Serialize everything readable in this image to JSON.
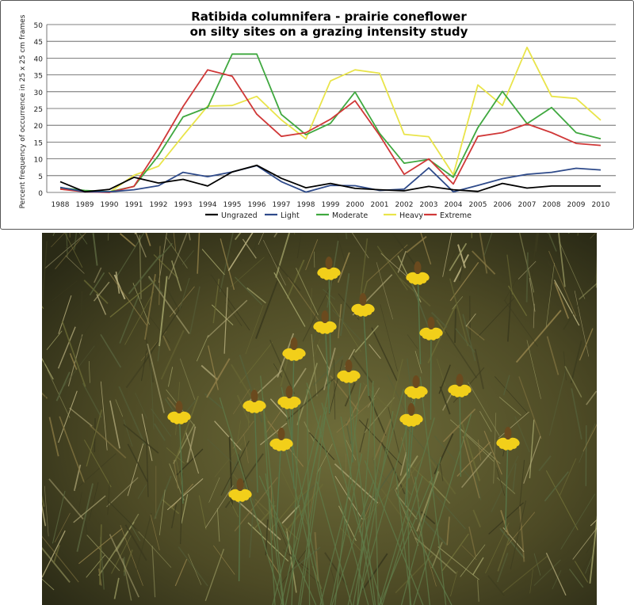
{
  "chart_data": {
    "type": "line",
    "title_line1": "Ratibida columnifera  -  prairie coneflower",
    "title_line2": "on silty sites on a grazing intensity study",
    "ylabel": "Percent frequency of occurrence in 25 x 25 cm frames",
    "xlabel": "",
    "ylim": [
      0,
      50
    ],
    "yticks": [
      0,
      5,
      10,
      15,
      20,
      25,
      30,
      35,
      40,
      45,
      50
    ],
    "grid": "horizontal",
    "legend_position": "bottom",
    "x": [
      1988,
      1989,
      1990,
      1991,
      1992,
      1993,
      1994,
      1995,
      1996,
      1997,
      1998,
      1999,
      2000,
      2001,
      2002,
      2003,
      2004,
      2005,
      2006,
      2007,
      2008,
      2009,
      2010
    ],
    "series": [
      {
        "name": "Ungrazed",
        "color": "#000000",
        "values": [
          3.2,
          0.2,
          0.9,
          4.5,
          2.8,
          3.9,
          1.9,
          6.1,
          8.1,
          4.2,
          1.4,
          2.7,
          1.2,
          0.8,
          0.5,
          1.8,
          0.8,
          0.3,
          2.7,
          1.3,
          1.9,
          1.9,
          1.9
        ]
      },
      {
        "name": "Light",
        "color": "#2e4a8a",
        "values": [
          1.5,
          0.2,
          0.2,
          0.8,
          2.0,
          6.0,
          4.7,
          6.1,
          8.0,
          3.2,
          0.1,
          2.1,
          2.0,
          0.6,
          1.0,
          7.3,
          0.2,
          2.1,
          4.1,
          5.4,
          6.0,
          7.2,
          6.7
        ]
      },
      {
        "name": "Moderate",
        "color": "#3fa83f",
        "values": [
          1.4,
          0.6,
          0.2,
          1.8,
          11.0,
          22.5,
          25.3,
          41.2,
          41.2,
          23.2,
          17.2,
          20.6,
          29.9,
          17.6,
          8.7,
          9.8,
          4.5,
          19.3,
          30.1,
          20.5,
          25.3,
          17.8,
          16.0
        ]
      },
      {
        "name": "Heavy",
        "color": "#e9e44a",
        "values": [
          1.0,
          0.4,
          0.0,
          5.1,
          7.8,
          16.9,
          25.7,
          25.9,
          28.6,
          21.6,
          16.0,
          33.2,
          36.5,
          35.5,
          17.3,
          16.6,
          5.3,
          32.0,
          25.9,
          43.2,
          28.6,
          28.0,
          21.5
        ]
      },
      {
        "name": "Extreme",
        "color": "#d03838",
        "values": [
          1.0,
          0.2,
          0.0,
          1.8,
          13.1,
          25.6,
          36.5,
          34.6,
          23.3,
          16.7,
          17.8,
          21.8,
          27.3,
          17.0,
          5.4,
          10.0,
          2.5,
          16.7,
          17.8,
          20.4,
          17.8,
          14.6,
          14.0
        ]
      }
    ]
  },
  "photo": {
    "colors": {
      "grass_dark": "#3b3a1e",
      "grass_mid": "#6b6a35",
      "grass_light": "#9a9a62",
      "petal": "#f2cf1a",
      "cone": "#6b4a1e"
    }
  }
}
